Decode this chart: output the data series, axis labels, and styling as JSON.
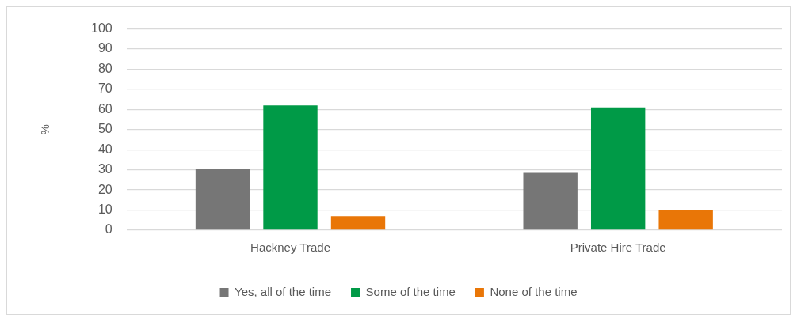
{
  "chart_data": {
    "type": "bar",
    "ylabel": "%",
    "categories": [
      "Hackney Trade",
      "Private Hire Trade"
    ],
    "series": [
      {
        "name": "Yes, all of the time",
        "color": "#767676",
        "values": [
          30.5,
          28.5
        ]
      },
      {
        "name": "Some of the time",
        "color": "#009a47",
        "values": [
          62,
          61
        ]
      },
      {
        "name": "None of the time",
        "color": "#e97607",
        "values": [
          7,
          10
        ]
      }
    ],
    "ylim": [
      0,
      100
    ],
    "yticks": [
      0,
      10,
      20,
      30,
      40,
      50,
      60,
      70,
      80,
      90,
      100
    ],
    "grid": "y",
    "legend": "bottom"
  }
}
